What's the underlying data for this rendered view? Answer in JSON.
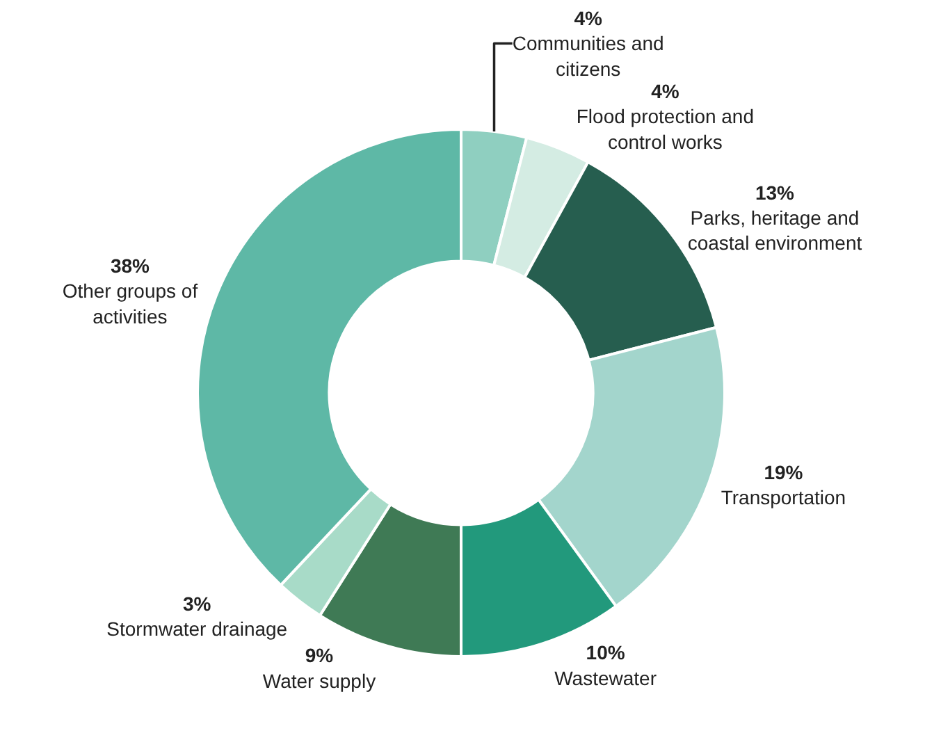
{
  "chart_data": {
    "type": "donut",
    "categories": [
      "Communities and citizens",
      "Flood protection and control works",
      "Parks, heritage and coastal environment",
      "Transportation",
      "Wastewater",
      "Water supply",
      "Stormwater drainage",
      "Other groups of activities"
    ],
    "values": [
      4,
      4,
      13,
      19,
      10,
      9,
      3,
      38
    ],
    "value_labels": [
      "4%",
      "4%",
      "13%",
      "19%",
      "10%",
      "9%",
      "3%",
      "38%"
    ],
    "colors": [
      "#8fcfc0",
      "#d4ece3",
      "#265e4f",
      "#a3d5cc",
      "#22997c",
      "#3f7a55",
      "#a8dbc8",
      "#5eb8a6"
    ],
    "legend": false
  }
}
